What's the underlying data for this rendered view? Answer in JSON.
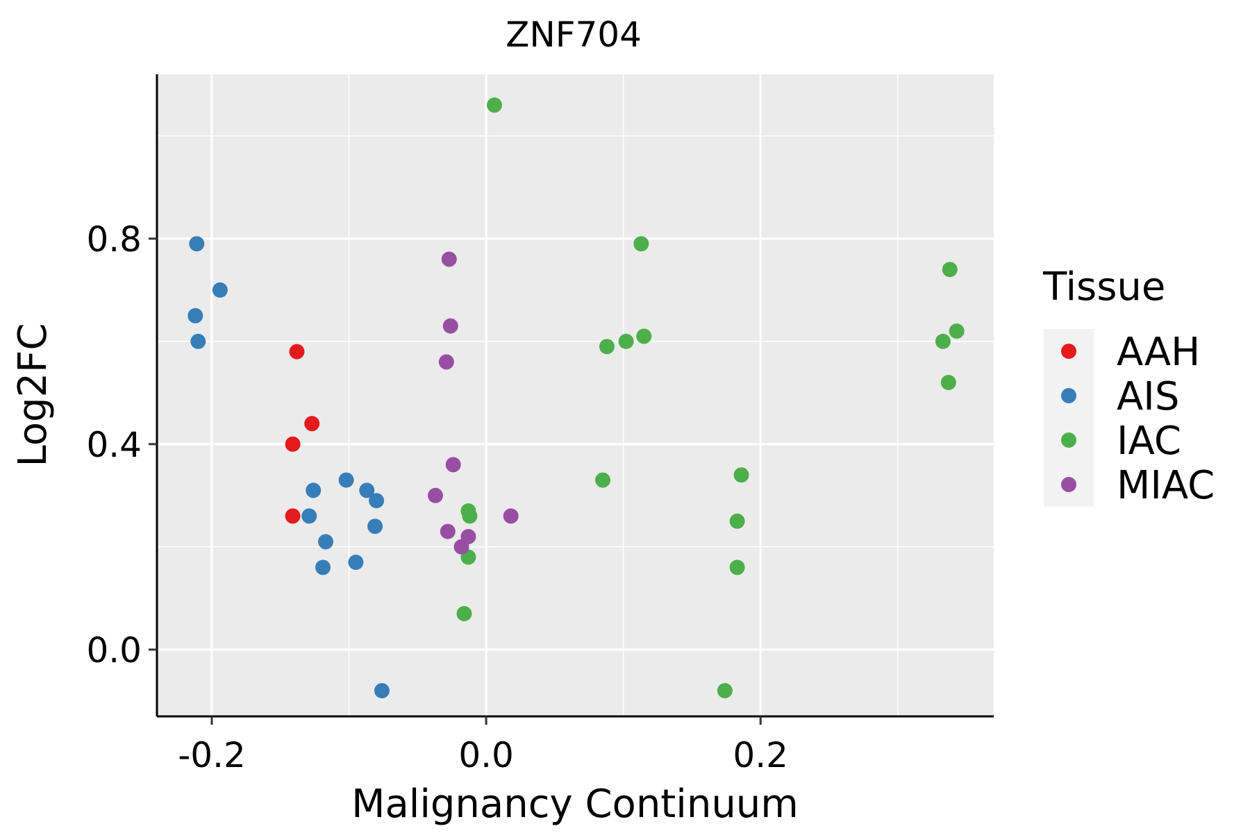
{
  "chart_data": {
    "type": "scatter",
    "title": "ZNF704",
    "xlabel": "Malignancy Continuum",
    "ylabel": "Log2FC",
    "xlim": [
      -0.24,
      0.37
    ],
    "ylim": [
      -0.13,
      1.12
    ],
    "xticks": [
      -0.2,
      0.0,
      0.2
    ],
    "xtick_labels": [
      "-0.2",
      "0.0",
      "0.2"
    ],
    "yticks": [
      0.0,
      0.4,
      0.8
    ],
    "ytick_labels": [
      "0.0",
      "0.4",
      "0.8"
    ],
    "x_minor_gridlines": [
      -0.1,
      0.1,
      0.3
    ],
    "y_minor_gridlines": [
      0.2,
      0.6,
      1.0
    ],
    "grid": true,
    "legend": {
      "title": "Tissue",
      "position": "right",
      "entries": [
        "AAH",
        "AIS",
        "IAC",
        "MIAC"
      ]
    },
    "colors": {
      "AAH": "#E41A1C",
      "AIS": "#377EB8",
      "IAC": "#4DAF4A",
      "MIAC": "#984EA3",
      "panel_background": "#EBEBEB",
      "gridline": "#FFFFFF"
    },
    "series": [
      {
        "name": "AAH",
        "points": [
          {
            "x": -0.138,
            "y": 0.58
          },
          {
            "x": -0.127,
            "y": 0.44
          },
          {
            "x": -0.141,
            "y": 0.4
          },
          {
            "x": -0.141,
            "y": 0.26
          }
        ]
      },
      {
        "name": "AIS",
        "points": [
          {
            "x": -0.211,
            "y": 0.79
          },
          {
            "x": -0.194,
            "y": 0.7
          },
          {
            "x": -0.212,
            "y": 0.65
          },
          {
            "x": -0.21,
            "y": 0.6
          },
          {
            "x": -0.102,
            "y": 0.33
          },
          {
            "x": -0.126,
            "y": 0.31
          },
          {
            "x": -0.087,
            "y": 0.31
          },
          {
            "x": -0.08,
            "y": 0.29
          },
          {
            "x": -0.129,
            "y": 0.26
          },
          {
            "x": -0.081,
            "y": 0.24
          },
          {
            "x": -0.117,
            "y": 0.21
          },
          {
            "x": -0.095,
            "y": 0.17
          },
          {
            "x": -0.119,
            "y": 0.16
          },
          {
            "x": -0.076,
            "y": -0.08
          }
        ]
      },
      {
        "name": "IAC",
        "points": [
          {
            "x": 0.006,
            "y": 1.06
          },
          {
            "x": 0.113,
            "y": 0.79
          },
          {
            "x": 0.338,
            "y": 0.74
          },
          {
            "x": 0.343,
            "y": 0.62
          },
          {
            "x": 0.115,
            "y": 0.61
          },
          {
            "x": 0.102,
            "y": 0.6
          },
          {
            "x": 0.333,
            "y": 0.6
          },
          {
            "x": 0.088,
            "y": 0.59
          },
          {
            "x": 0.337,
            "y": 0.52
          },
          {
            "x": 0.186,
            "y": 0.34
          },
          {
            "x": 0.085,
            "y": 0.33
          },
          {
            "x": -0.013,
            "y": 0.27
          },
          {
            "x": -0.012,
            "y": 0.26
          },
          {
            "x": 0.183,
            "y": 0.25
          },
          {
            "x": -0.013,
            "y": 0.18
          },
          {
            "x": 0.183,
            "y": 0.16
          },
          {
            "x": -0.016,
            "y": 0.07
          },
          {
            "x": 0.174,
            "y": -0.08
          }
        ]
      },
      {
        "name": "MIAC",
        "points": [
          {
            "x": -0.027,
            "y": 0.76
          },
          {
            "x": -0.026,
            "y": 0.63
          },
          {
            "x": -0.029,
            "y": 0.56
          },
          {
            "x": -0.024,
            "y": 0.36
          },
          {
            "x": -0.037,
            "y": 0.3
          },
          {
            "x": 0.018,
            "y": 0.26
          },
          {
            "x": -0.028,
            "y": 0.23
          },
          {
            "x": -0.013,
            "y": 0.22
          },
          {
            "x": -0.018,
            "y": 0.2
          }
        ]
      }
    ]
  }
}
